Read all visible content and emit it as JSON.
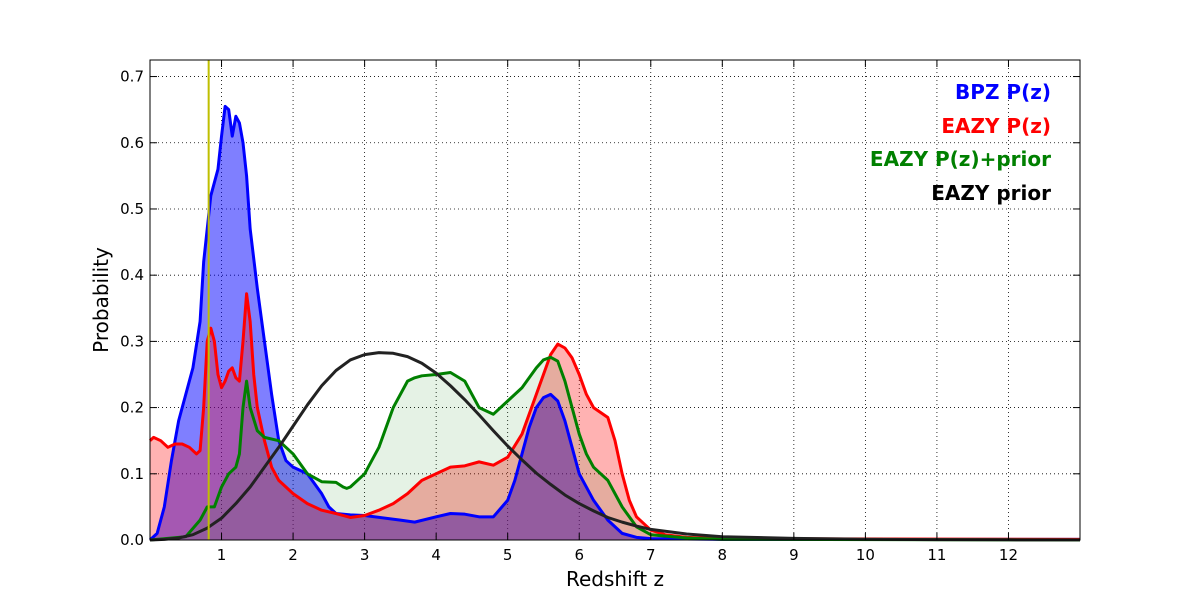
{
  "chart_data": {
    "type": "area",
    "title": "",
    "xlabel": "Redshift z",
    "ylabel": "Probability",
    "xlim": [
      0,
      13
    ],
    "ylim": [
      0,
      0.725
    ],
    "xticks": [
      1,
      2,
      3,
      4,
      5,
      6,
      7,
      8,
      9,
      10,
      11,
      12
    ],
    "xtick_labels": [
      "1",
      "2",
      "3",
      "4",
      "5",
      "6",
      "7",
      "8",
      "9",
      "10",
      "11",
      "12"
    ],
    "yticks": [
      0.0,
      0.1,
      0.2,
      0.3,
      0.4,
      0.5,
      0.6,
      0.7
    ],
    "ytick_labels": [
      "0.0",
      "0.1",
      "0.2",
      "0.3",
      "0.4",
      "0.5",
      "0.6",
      "0.7"
    ],
    "grid": true,
    "legend_position": "top-right",
    "vline": {
      "x": 0.82,
      "color": "#bfbf00"
    },
    "series": [
      {
        "name": "BPZ P(z)",
        "color": "#0000ff",
        "fill": "#0000ff",
        "fill_opacity": 0.5,
        "filled": true,
        "points": [
          [
            0,
            0.0
          ],
          [
            0.1,
            0.01
          ],
          [
            0.2,
            0.05
          ],
          [
            0.3,
            0.12
          ],
          [
            0.4,
            0.18
          ],
          [
            0.5,
            0.22
          ],
          [
            0.6,
            0.26
          ],
          [
            0.7,
            0.33
          ],
          [
            0.75,
            0.42
          ],
          [
            0.8,
            0.47
          ],
          [
            0.85,
            0.52
          ],
          [
            0.9,
            0.54
          ],
          [
            0.95,
            0.56
          ],
          [
            1.0,
            0.61
          ],
          [
            1.05,
            0.655
          ],
          [
            1.1,
            0.65
          ],
          [
            1.15,
            0.61
          ],
          [
            1.2,
            0.64
          ],
          [
            1.25,
            0.63
          ],
          [
            1.3,
            0.6
          ],
          [
            1.35,
            0.55
          ],
          [
            1.4,
            0.47
          ],
          [
            1.5,
            0.38
          ],
          [
            1.6,
            0.3
          ],
          [
            1.7,
            0.22
          ],
          [
            1.8,
            0.15
          ],
          [
            1.9,
            0.12
          ],
          [
            2.0,
            0.11
          ],
          [
            2.2,
            0.1
          ],
          [
            2.4,
            0.07
          ],
          [
            2.5,
            0.05
          ],
          [
            2.6,
            0.04
          ],
          [
            2.8,
            0.038
          ],
          [
            3.0,
            0.037
          ],
          [
            3.5,
            0.03
          ],
          [
            3.7,
            0.027
          ],
          [
            4.0,
            0.035
          ],
          [
            4.2,
            0.04
          ],
          [
            4.4,
            0.039
          ],
          [
            4.6,
            0.035
          ],
          [
            4.8,
            0.035
          ],
          [
            5.0,
            0.06
          ],
          [
            5.1,
            0.09
          ],
          [
            5.2,
            0.13
          ],
          [
            5.3,
            0.17
          ],
          [
            5.4,
            0.2
          ],
          [
            5.5,
            0.215
          ],
          [
            5.6,
            0.22
          ],
          [
            5.7,
            0.21
          ],
          [
            5.8,
            0.18
          ],
          [
            5.9,
            0.14
          ],
          [
            6.0,
            0.1
          ],
          [
            6.2,
            0.06
          ],
          [
            6.4,
            0.03
          ],
          [
            6.6,
            0.01
          ],
          [
            6.8,
            0.004
          ],
          [
            7.0,
            0.002
          ],
          [
            8.0,
            0.001
          ],
          [
            13.0,
            0.001
          ]
        ]
      },
      {
        "name": "EAZY P(z)",
        "color": "#ff0000",
        "fill": "#ff0000",
        "fill_opacity": 0.3,
        "filled": true,
        "points": [
          [
            0,
            0.15
          ],
          [
            0.05,
            0.155
          ],
          [
            0.15,
            0.15
          ],
          [
            0.25,
            0.14
          ],
          [
            0.35,
            0.145
          ],
          [
            0.45,
            0.145
          ],
          [
            0.55,
            0.14
          ],
          [
            0.65,
            0.13
          ],
          [
            0.7,
            0.135
          ],
          [
            0.75,
            0.2
          ],
          [
            0.8,
            0.3
          ],
          [
            0.85,
            0.32
          ],
          [
            0.9,
            0.3
          ],
          [
            0.95,
            0.25
          ],
          [
            1.0,
            0.23
          ],
          [
            1.05,
            0.24
          ],
          [
            1.1,
            0.255
          ],
          [
            1.15,
            0.26
          ],
          [
            1.2,
            0.245
          ],
          [
            1.25,
            0.24
          ],
          [
            1.3,
            0.3
          ],
          [
            1.35,
            0.372
          ],
          [
            1.4,
            0.33
          ],
          [
            1.45,
            0.25
          ],
          [
            1.5,
            0.2
          ],
          [
            1.6,
            0.15
          ],
          [
            1.7,
            0.11
          ],
          [
            1.8,
            0.09
          ],
          [
            2.0,
            0.07
          ],
          [
            2.2,
            0.055
          ],
          [
            2.4,
            0.045
          ],
          [
            2.6,
            0.04
          ],
          [
            2.8,
            0.034
          ],
          [
            3.0,
            0.037
          ],
          [
            3.2,
            0.045
          ],
          [
            3.4,
            0.055
          ],
          [
            3.6,
            0.07
          ],
          [
            3.8,
            0.09
          ],
          [
            4.0,
            0.1
          ],
          [
            4.2,
            0.11
          ],
          [
            4.4,
            0.112
          ],
          [
            4.6,
            0.118
          ],
          [
            4.8,
            0.113
          ],
          [
            5.0,
            0.125
          ],
          [
            5.2,
            0.16
          ],
          [
            5.4,
            0.22
          ],
          [
            5.6,
            0.28
          ],
          [
            5.7,
            0.296
          ],
          [
            5.8,
            0.29
          ],
          [
            5.9,
            0.275
          ],
          [
            6.0,
            0.25
          ],
          [
            6.1,
            0.22
          ],
          [
            6.2,
            0.2
          ],
          [
            6.4,
            0.185
          ],
          [
            6.5,
            0.15
          ],
          [
            6.6,
            0.1
          ],
          [
            6.7,
            0.06
          ],
          [
            6.8,
            0.035
          ],
          [
            7.0,
            0.015
          ],
          [
            7.2,
            0.008
          ],
          [
            7.5,
            0.004
          ],
          [
            8.0,
            0.002
          ],
          [
            13.0,
            0.001
          ]
        ]
      },
      {
        "name": "EAZY P(z)+prior",
        "color": "#008000",
        "fill": "#008000",
        "fill_opacity": 0.1,
        "filled": true,
        "points": [
          [
            0,
            0.0
          ],
          [
            0.5,
            0.005
          ],
          [
            0.7,
            0.03
          ],
          [
            0.8,
            0.05
          ],
          [
            0.9,
            0.05
          ],
          [
            1.0,
            0.08
          ],
          [
            1.1,
            0.1
          ],
          [
            1.2,
            0.11
          ],
          [
            1.25,
            0.13
          ],
          [
            1.3,
            0.2
          ],
          [
            1.35,
            0.24
          ],
          [
            1.4,
            0.2
          ],
          [
            1.5,
            0.165
          ],
          [
            1.6,
            0.155
          ],
          [
            1.8,
            0.15
          ],
          [
            2.0,
            0.13
          ],
          [
            2.2,
            0.1
          ],
          [
            2.4,
            0.088
          ],
          [
            2.6,
            0.087
          ],
          [
            2.7,
            0.08
          ],
          [
            2.75,
            0.078
          ],
          [
            2.8,
            0.08
          ],
          [
            3.0,
            0.1
          ],
          [
            3.2,
            0.14
          ],
          [
            3.4,
            0.2
          ],
          [
            3.6,
            0.24
          ],
          [
            3.7,
            0.245
          ],
          [
            3.8,
            0.248
          ],
          [
            4.0,
            0.25
          ],
          [
            4.2,
            0.253
          ],
          [
            4.4,
            0.24
          ],
          [
            4.6,
            0.2
          ],
          [
            4.8,
            0.19
          ],
          [
            5.0,
            0.21
          ],
          [
            5.2,
            0.23
          ],
          [
            5.4,
            0.26
          ],
          [
            5.5,
            0.272
          ],
          [
            5.6,
            0.276
          ],
          [
            5.7,
            0.27
          ],
          [
            5.8,
            0.24
          ],
          [
            5.9,
            0.2
          ],
          [
            6.0,
            0.16
          ],
          [
            6.1,
            0.13
          ],
          [
            6.2,
            0.11
          ],
          [
            6.4,
            0.09
          ],
          [
            6.6,
            0.05
          ],
          [
            6.8,
            0.02
          ],
          [
            7.0,
            0.008
          ],
          [
            7.5,
            0.003
          ],
          [
            8.0,
            0.001
          ],
          [
            13.0,
            0.0
          ]
        ]
      },
      {
        "name": "EAZY prior",
        "color": "#000000",
        "fill": "#000000",
        "fill_opacity": 0.0,
        "filled": false,
        "points": [
          [
            0,
            0.0
          ],
          [
            0.2,
            0.001
          ],
          [
            0.4,
            0.003
          ],
          [
            0.6,
            0.008
          ],
          [
            0.8,
            0.018
          ],
          [
            1.0,
            0.033
          ],
          [
            1.2,
            0.055
          ],
          [
            1.4,
            0.08
          ],
          [
            1.6,
            0.11
          ],
          [
            1.8,
            0.14
          ],
          [
            2.0,
            0.172
          ],
          [
            2.2,
            0.204
          ],
          [
            2.4,
            0.233
          ],
          [
            2.6,
            0.256
          ],
          [
            2.8,
            0.272
          ],
          [
            3.0,
            0.28
          ],
          [
            3.2,
            0.283
          ],
          [
            3.4,
            0.282
          ],
          [
            3.6,
            0.277
          ],
          [
            3.8,
            0.267
          ],
          [
            4.0,
            0.252
          ],
          [
            4.2,
            0.233
          ],
          [
            4.4,
            0.212
          ],
          [
            4.6,
            0.189
          ],
          [
            4.8,
            0.165
          ],
          [
            5.0,
            0.142
          ],
          [
            5.2,
            0.121
          ],
          [
            5.4,
            0.101
          ],
          [
            5.6,
            0.084
          ],
          [
            5.8,
            0.068
          ],
          [
            6.0,
            0.055
          ],
          [
            6.2,
            0.044
          ],
          [
            6.4,
            0.034
          ],
          [
            6.6,
            0.027
          ],
          [
            6.8,
            0.021
          ],
          [
            7.0,
            0.016
          ],
          [
            7.5,
            0.009
          ],
          [
            8.0,
            0.005
          ],
          [
            9.0,
            0.0025
          ],
          [
            10.0,
            0.0012
          ],
          [
            11.0,
            0.0006
          ],
          [
            12.0,
            0.0003
          ],
          [
            13.0,
            0.0001
          ]
        ]
      }
    ]
  }
}
